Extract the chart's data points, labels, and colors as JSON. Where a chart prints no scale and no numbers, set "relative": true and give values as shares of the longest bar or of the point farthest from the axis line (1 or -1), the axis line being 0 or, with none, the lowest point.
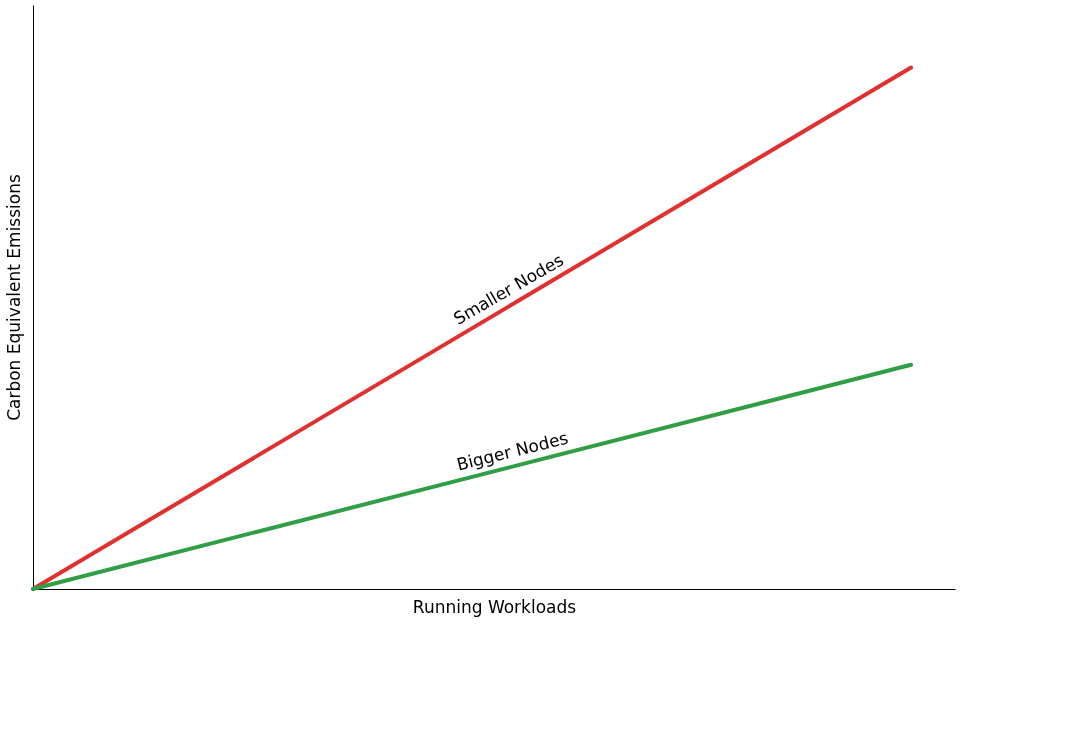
{
  "chart_data": {
    "type": "line",
    "relative": true,
    "xlabel": "Running Workloads",
    "ylabel": "Carbon Equivalent Emissions",
    "categories": [
      null,
      null
    ],
    "grid": false,
    "marker": "none",
    "line_style": "solid",
    "tick_labels": false,
    "series": [
      {
        "name": "Smaller Nodes",
        "color": "#e03131",
        "values": [
          0,
          1
        ]
      },
      {
        "name": "Bigger Nodes",
        "color": "#2f9e44",
        "values": [
          0,
          0.43
        ]
      }
    ]
  }
}
